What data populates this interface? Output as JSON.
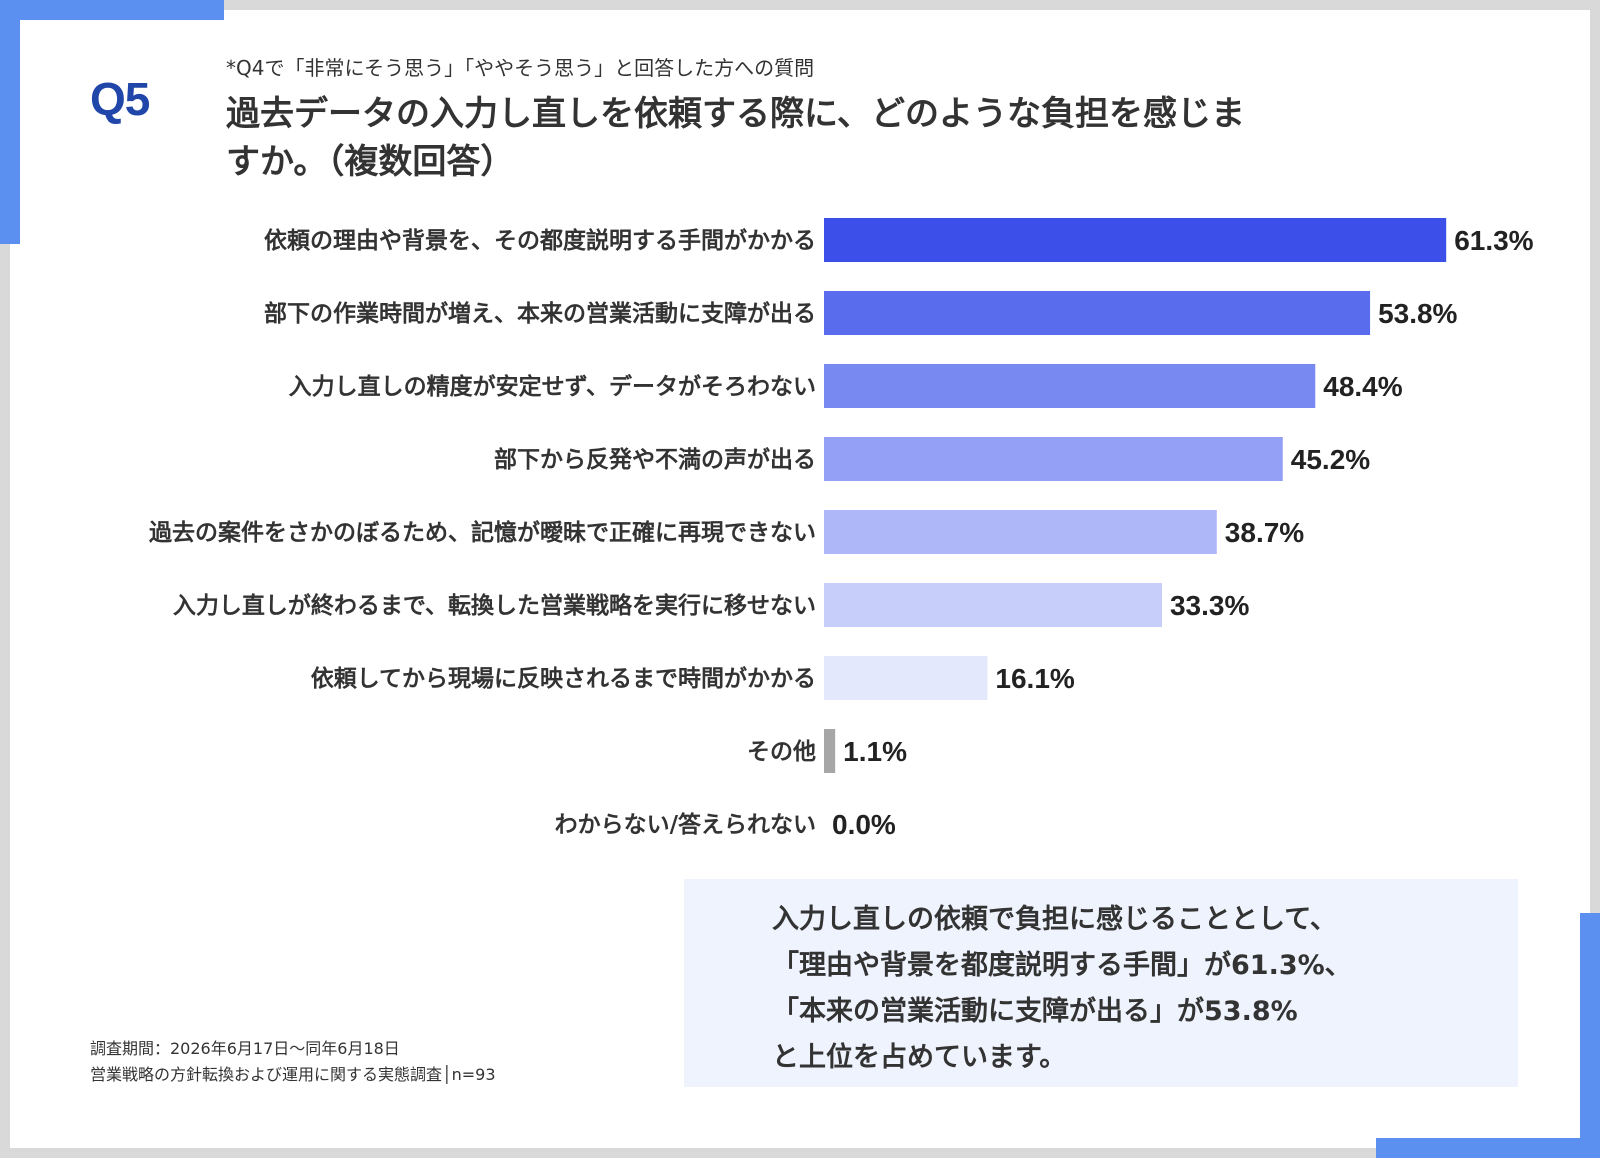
{
  "header": {
    "question_number": "Q5",
    "note": "*Q4で「非常にそう思う」「ややそう思う」と回答した方への質問",
    "title": "過去データの入力し直しを依頼する際に、どのような負担を感じますか。（複数回答）"
  },
  "chart_data": {
    "type": "bar",
    "orientation": "horizontal",
    "categories": [
      "依頼の理由や背景を、その都度説明する手間がかかる",
      "部下の作業時間が増え、本来の営業活動に支障が出る",
      "入力し直しの精度が安定せず、データがそろわない",
      "部下から反発や不満の声が出る",
      "過去の案件をさかのぼるため、記憶が曖昧で正確に再現できない",
      "入力し直しが終わるまで、転換した営業戦略を実行に移せない",
      "依頼してから現場に反映されるまで時間がかかる",
      "その他",
      "わからない/答えられない"
    ],
    "values": [
      61.3,
      53.8,
      48.4,
      45.2,
      38.7,
      33.3,
      16.1,
      1.1,
      0.0
    ],
    "value_labels": [
      "61.3%",
      "53.8%",
      "48.4%",
      "45.2%",
      "38.7%",
      "33.3%",
      "16.1%",
      "1.1%",
      "0.0%"
    ],
    "bar_colors": [
      "#3c4fe8",
      "#5a6cee",
      "#7989f2",
      "#93a0f5",
      "#aeb8f8",
      "#c7cefa",
      "#e4e8fc",
      "#a6a6a6",
      "#a6a6a6"
    ],
    "unit": "%",
    "grid": false
  },
  "summary": {
    "text": "入力し直しの依頼で負担に感じることとして、\n「理由や背景を都度説明する手間」が61.3%、\n「本来の営業活動に支障が出る」が53.8%\nと上位を占めています。"
  },
  "footer": {
    "period": "調査期間：2026年6月17日～同年6月18日",
    "survey": "営業戦略の方針転換および運用に関する実態調査│n=93"
  },
  "colors": {
    "accent": "#5b8ff0",
    "q_label": "#1f46a8",
    "summary_bg": "#eef3fd",
    "page_border": "#d9d9d9"
  }
}
